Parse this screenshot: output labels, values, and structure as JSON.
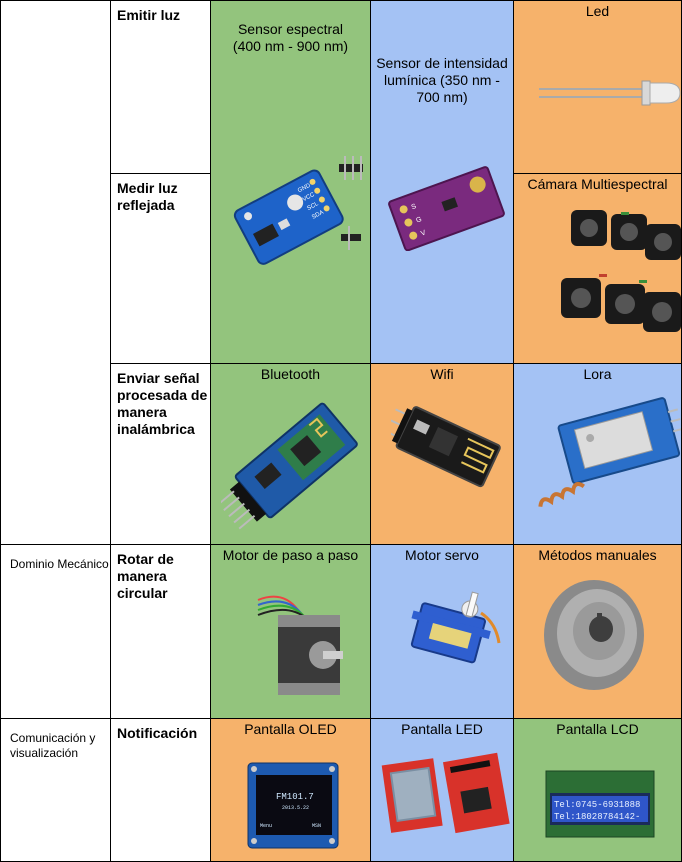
{
  "rows": {
    "emitir": {
      "function": "Emitir luz"
    },
    "medir": {
      "function": "Medir luz reflejada"
    },
    "enviar": {
      "function": "Enviar señal procesada de manera inalámbrica"
    },
    "rotar": {
      "domain": "Dominio Mecánico",
      "function": "Rotar de manera circular"
    },
    "notif": {
      "domain": "Comunicación y visualización",
      "function": "Notificación"
    }
  },
  "cells": {
    "sensor_espectral": {
      "title": "Sensor espectral (400 nm - 900 nm)",
      "color": "#93c47d",
      "pin_labels": [
        "GND",
        "VCC",
        "SCL",
        "SDA"
      ]
    },
    "sensor_intensidad": {
      "title": "Sensor de intensidad lumínica (350 nm - 700 nm)",
      "color": "#a4c2f4",
      "pin_labels": [
        "S",
        "G",
        "V"
      ]
    },
    "led": {
      "title": "Led",
      "color": "#f6b26b"
    },
    "camara": {
      "title": "Cámara Multiespectral",
      "color": "#f6b26b"
    },
    "bluetooth": {
      "title": "Bluetooth",
      "color": "#93c47d"
    },
    "wifi": {
      "title": "Wifi",
      "color": "#f6b26b"
    },
    "lora": {
      "title": "Lora",
      "color": "#a4c2f4"
    },
    "motor_paso": {
      "title": "Motor de paso a paso",
      "color": "#93c47d"
    },
    "motor_servo": {
      "title": "Motor servo",
      "color": "#a4c2f4"
    },
    "metodos": {
      "title": "Métodos manuales",
      "color": "#f6b26b"
    },
    "oled": {
      "title": "Pantalla OLED",
      "color": "#f6b26b",
      "screen_lines": [
        "FM101.7",
        "2013.5.22",
        "Menu",
        "MSN"
      ]
    },
    "led_screen": {
      "title": "Pantalla LED",
      "color": "#a4c2f4"
    },
    "lcd": {
      "title": "Pantalla LCD",
      "color": "#93c47d",
      "screen_lines": [
        "Tel:0745-6931888",
        "Tel:18028784142-"
      ]
    }
  }
}
